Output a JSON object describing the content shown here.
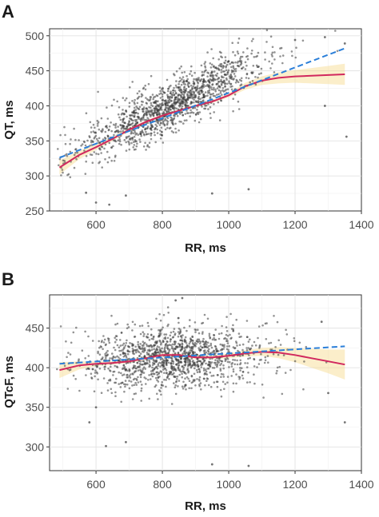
{
  "chart_data": [
    {
      "panel": "A",
      "type": "scatter",
      "xlabel": "RR, ms",
      "ylabel": "QT, ms",
      "xlim": [
        460,
        1400
      ],
      "ylim": [
        250,
        510
      ],
      "xticks": [
        600,
        800,
        1000,
        1200,
        1400
      ],
      "yticks": [
        250,
        300,
        350,
        400,
        450,
        500
      ],
      "grid": true,
      "legend": "none",
      "scatter_model": {
        "n_points": 1400,
        "seed": 11,
        "slope": 0.222,
        "intercept": 218,
        "noise_sd": 18,
        "x_mean": 830,
        "x_sd": 140
      },
      "outliers": [
        {
          "x": 570,
          "y": 276
        },
        {
          "x": 600,
          "y": 262
        },
        {
          "x": 640,
          "y": 259
        },
        {
          "x": 690,
          "y": 272
        },
        {
          "x": 950,
          "y": 275
        },
        {
          "x": 1060,
          "y": 281
        },
        {
          "x": 1200,
          "y": 494
        },
        {
          "x": 1290,
          "y": 498
        },
        {
          "x": 1350,
          "y": 489
        },
        {
          "x": 1355,
          "y": 356
        },
        {
          "x": 1290,
          "y": 400
        }
      ],
      "series": [
        {
          "style": "loess",
          "color": "#d1285e",
          "x": [
            490,
            550,
            600,
            650,
            700,
            750,
            800,
            850,
            900,
            950,
            1000,
            1050,
            1100,
            1150,
            1200,
            1250,
            1300,
            1350
          ],
          "y": [
            312,
            330,
            341,
            353,
            366,
            377,
            386,
            393,
            400,
            406,
            415,
            428,
            436,
            440,
            442,
            443,
            444,
            445
          ],
          "band_low": [
            302,
            324,
            337,
            350,
            363,
            375,
            384,
            391,
            398,
            404,
            412,
            423,
            430,
            432,
            433,
            432,
            431,
            430
          ],
          "band_high": [
            322,
            336,
            345,
            356,
            369,
            379,
            388,
            395,
            402,
            408,
            418,
            433,
            442,
            448,
            451,
            454,
            457,
            460
          ]
        },
        {
          "style": "linear",
          "color": "#2b7fd9",
          "x": [
            490,
            1350
          ],
          "y": [
            326,
            482
          ]
        }
      ]
    },
    {
      "panel": "B",
      "type": "scatter",
      "xlabel": "RR, ms",
      "ylabel": "QTcF, ms",
      "xlim": [
        460,
        1400
      ],
      "ylim": [
        270,
        492
      ],
      "xticks": [
        600,
        800,
        1000,
        1200,
        1400
      ],
      "yticks": [
        300,
        350,
        400,
        450
      ],
      "grid": true,
      "legend": "none",
      "scatter_model": {
        "n_points": 1400,
        "seed": 29,
        "slope": 0.02,
        "intercept": 396,
        "noise_sd": 20,
        "x_mean": 830,
        "x_sd": 140
      },
      "outliers": [
        {
          "x": 580,
          "y": 331
        },
        {
          "x": 630,
          "y": 301
        },
        {
          "x": 690,
          "y": 306
        },
        {
          "x": 600,
          "y": 350
        },
        {
          "x": 950,
          "y": 278
        },
        {
          "x": 1060,
          "y": 276
        },
        {
          "x": 1350,
          "y": 331
        },
        {
          "x": 1300,
          "y": 368
        },
        {
          "x": 1280,
          "y": 458
        },
        {
          "x": 860,
          "y": 488
        },
        {
          "x": 840,
          "y": 485
        }
      ],
      "series": [
        {
          "style": "loess",
          "color": "#d1285e",
          "x": [
            490,
            550,
            600,
            650,
            700,
            750,
            800,
            850,
            900,
            950,
            1000,
            1050,
            1100,
            1150,
            1200,
            1250,
            1300,
            1350
          ],
          "y": [
            397,
            403,
            405,
            406,
            408,
            412,
            416,
            416,
            413,
            413,
            415,
            418,
            420,
            419,
            416,
            412,
            408,
            404
          ],
          "band_low": [
            387,
            398,
            402,
            404,
            406,
            410,
            414,
            414,
            411,
            411,
            412,
            414,
            415,
            412,
            407,
            400,
            393,
            385
          ],
          "band_high": [
            407,
            408,
            408,
            408,
            410,
            414,
            418,
            418,
            415,
            415,
            418,
            422,
            425,
            426,
            425,
            424,
            423,
            423
          ]
        },
        {
          "style": "linear",
          "color": "#2b7fd9",
          "x": [
            490,
            1350
          ],
          "y": [
            405,
            427
          ]
        }
      ]
    }
  ]
}
